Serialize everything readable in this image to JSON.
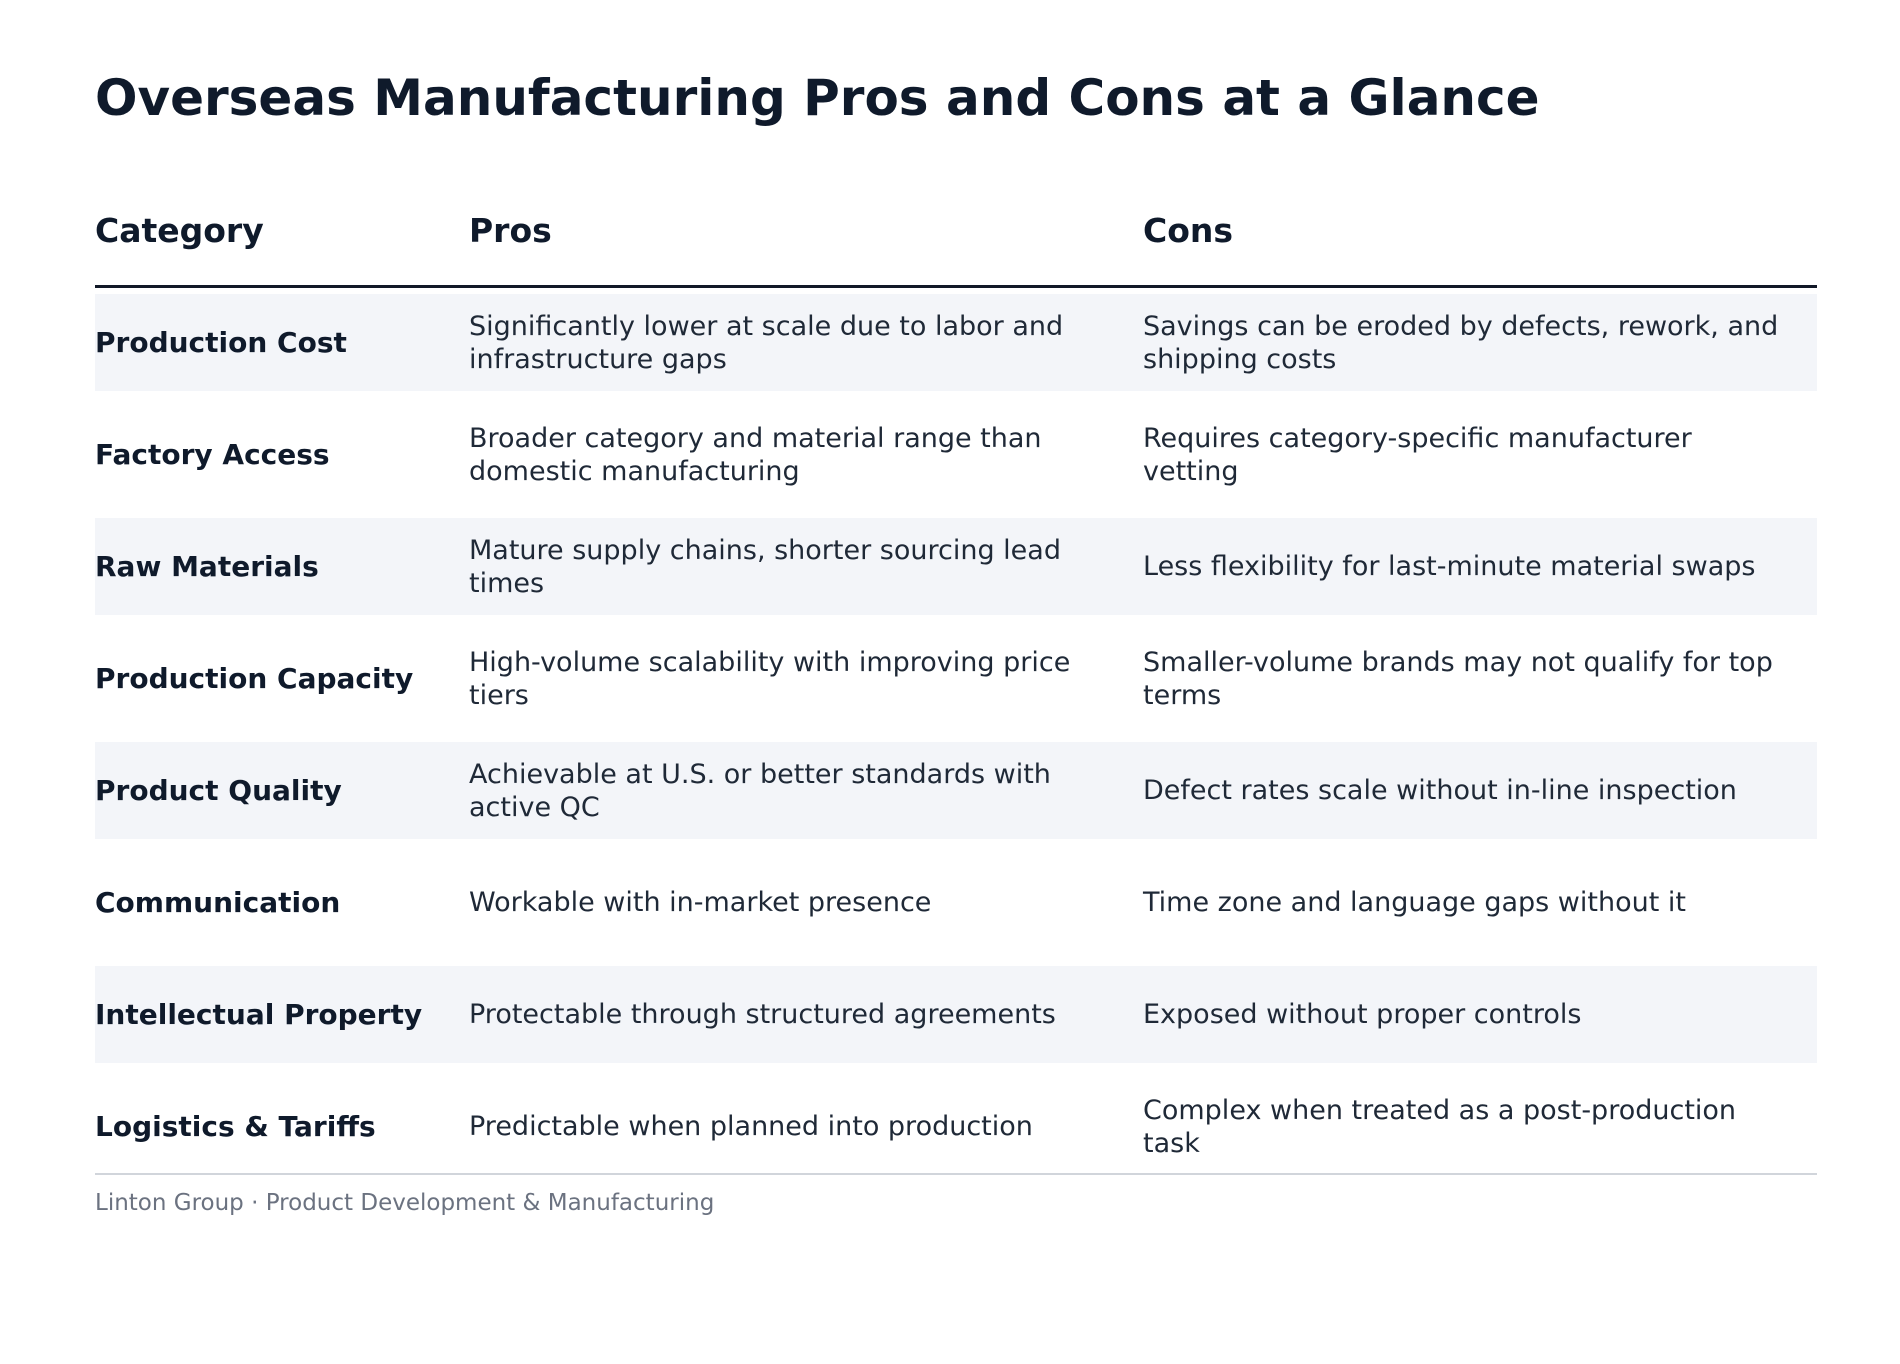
{
  "title": "Overseas Manufacturing Pros and Cons at a Glance",
  "table": {
    "headers": {
      "category": "Category",
      "pros": "Pros",
      "cons": "Cons"
    },
    "rows": [
      {
        "category": "Production Cost",
        "pros": "Significantly lower at scale due to labor and infrastructure gaps",
        "cons": "Savings can be eroded by defects, rework, and shipping costs"
      },
      {
        "category": "Factory Access",
        "pros": "Broader category and material range than domestic manufacturing",
        "cons": "Requires category-specific manufacturer vetting"
      },
      {
        "category": "Raw Materials",
        "pros": "Mature supply chains, shorter sourcing lead times",
        "cons": "Less flexibility for last-minute material swaps"
      },
      {
        "category": "Production Capacity",
        "pros": "High-volume scalability with improving price tiers",
        "cons": "Smaller-volume brands may not qualify for top terms"
      },
      {
        "category": "Product Quality",
        "pros": "Achievable at U.S. or better standards with active QC",
        "cons": "Defect rates scale without in-line inspection"
      },
      {
        "category": "Communication",
        "pros": "Workable with in-market presence",
        "cons": "Time zone and language gaps without it"
      },
      {
        "category": "Intellectual Property",
        "pros": "Protectable through structured agreements",
        "cons": "Exposed without proper controls"
      },
      {
        "category": "Logistics & Tariffs",
        "pros": "Predictable when planned into production",
        "cons": "Complex when treated as a post-production task"
      }
    ]
  },
  "footer": {
    "text": "Linton Group  ·  Product Development & Manufacturing"
  },
  "colors": {
    "row_shade": "#f3f5f9",
    "heading": "#0f1a2b",
    "footer": "#6b7280"
  }
}
